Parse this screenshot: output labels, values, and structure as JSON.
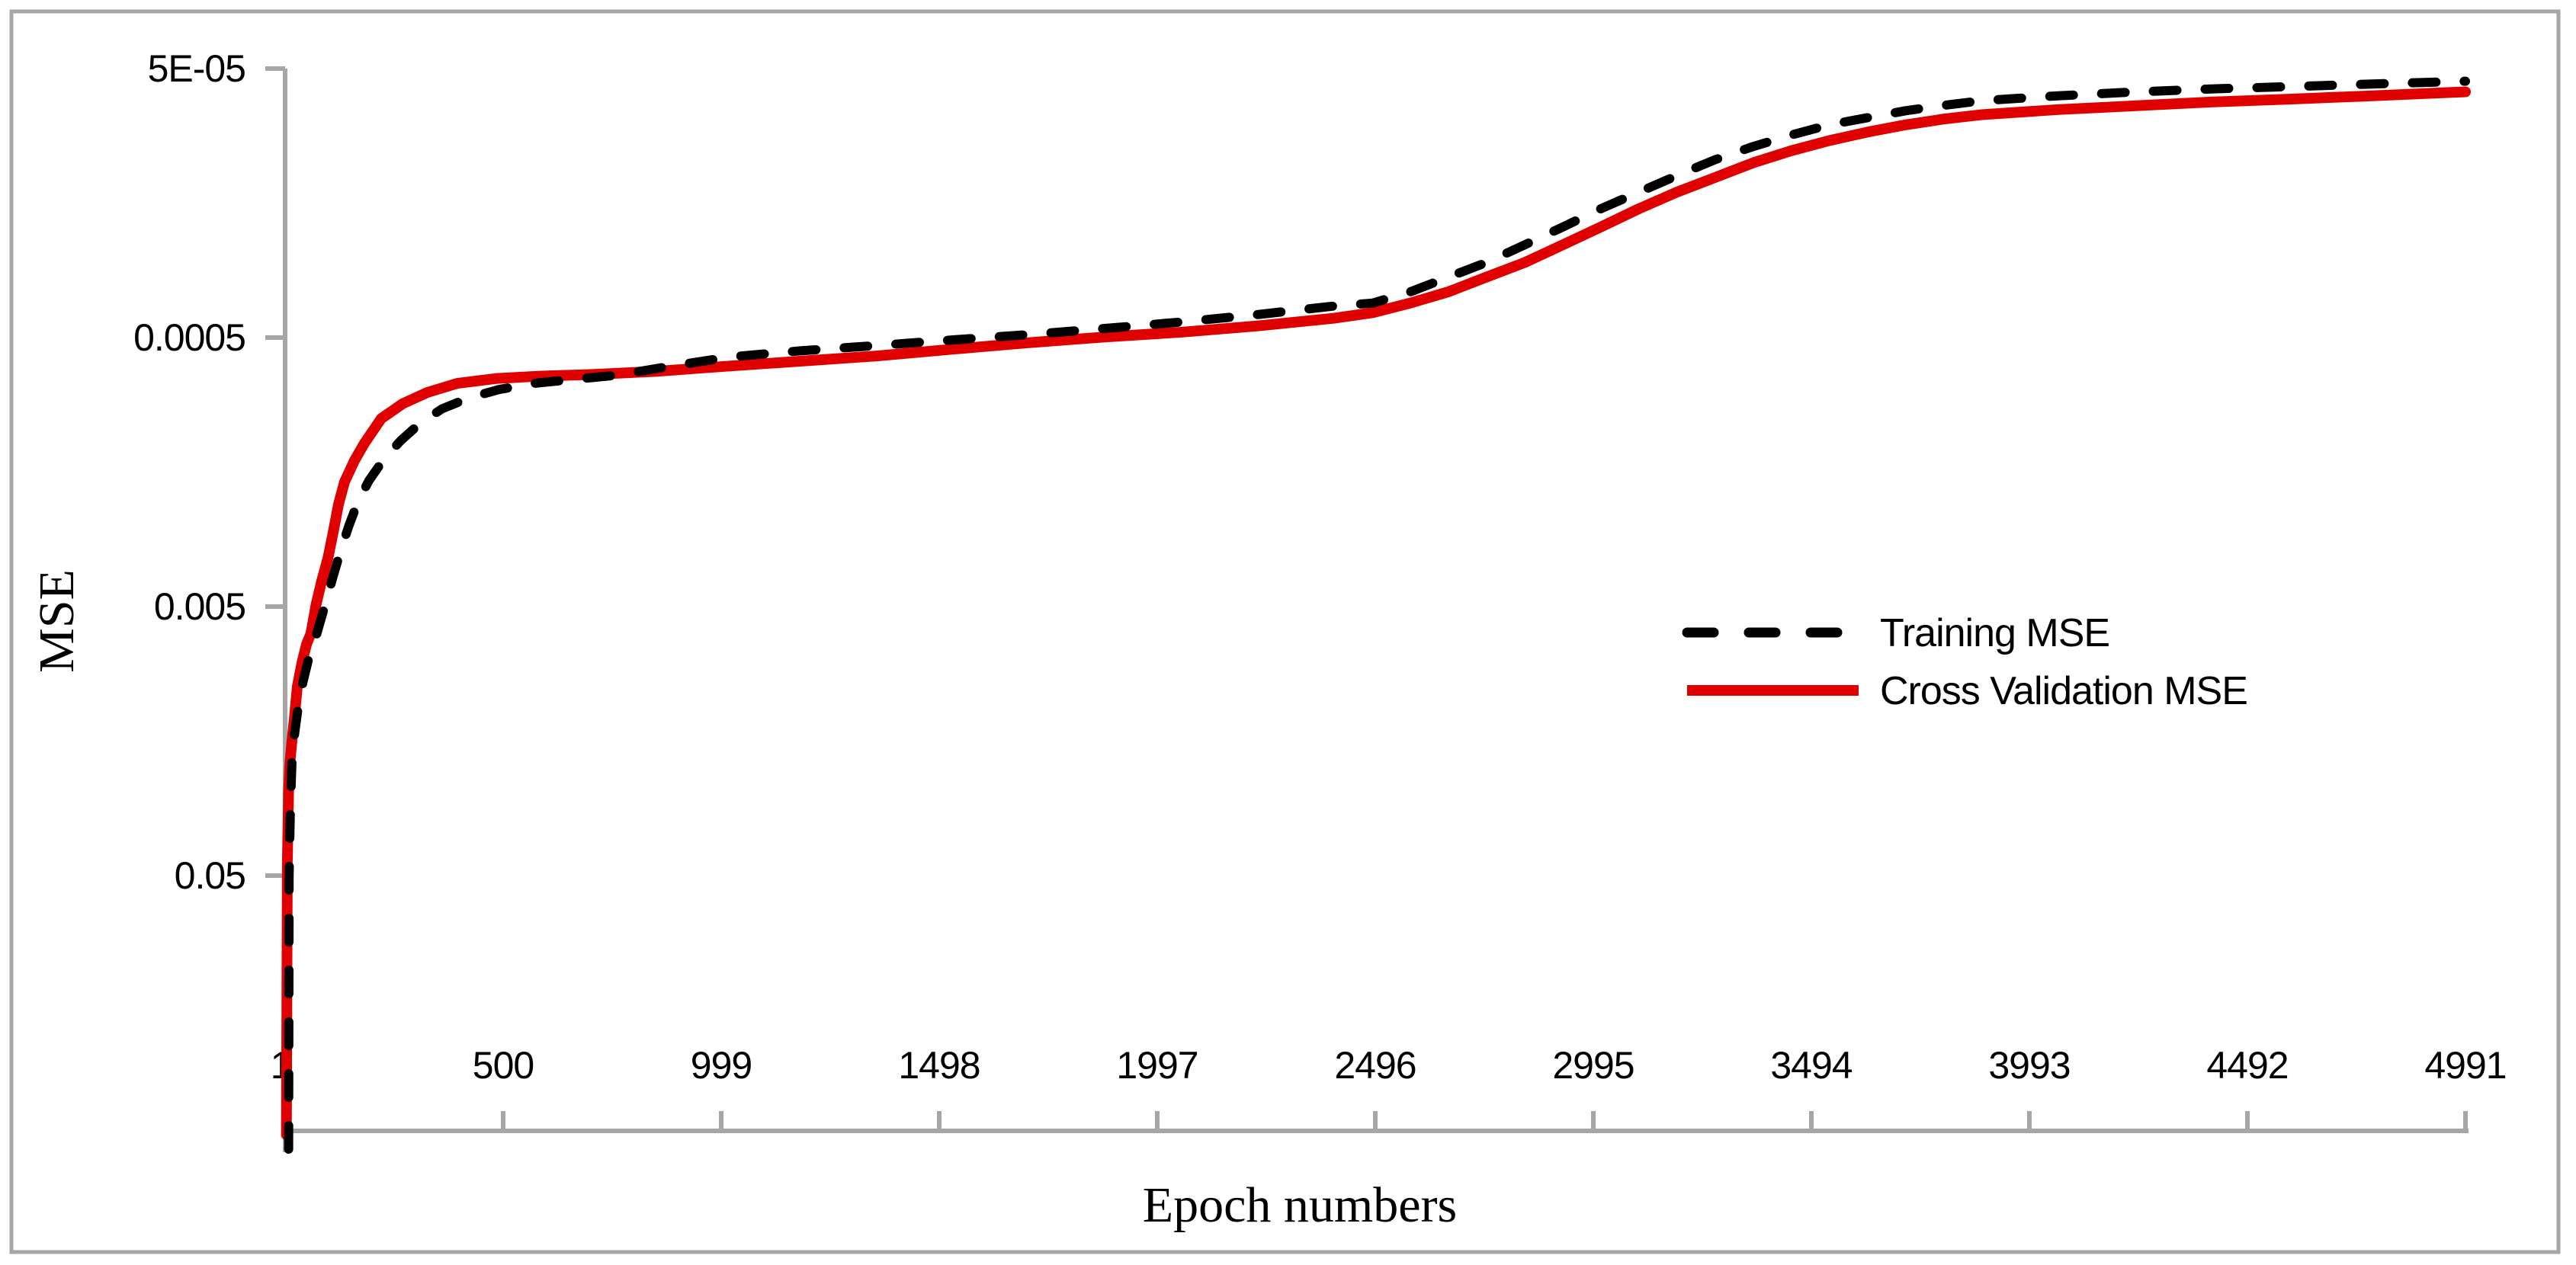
{
  "figure": {
    "kind": "excel-style-line-chart",
    "background": "#ffffff"
  },
  "colors": {
    "axis": "#a6a6a6",
    "frame": "#a6a6a6",
    "text": "#000000",
    "training": "#000000",
    "cross_validation": "#e00000"
  },
  "chart_data": {
    "type": "line",
    "title": "",
    "xlabel": "Epoch numbers",
    "ylabel": "MSE",
    "grid": false,
    "legend_position": "center-right-inside",
    "x_tick_labels": [
      "1",
      "500",
      "999",
      "1498",
      "1997",
      "2496",
      "2995",
      "3494",
      "3993",
      "4492",
      "4991"
    ],
    "x_tick_values": [
      1,
      500,
      999,
      1498,
      1997,
      2496,
      2995,
      3494,
      3993,
      4492,
      4991
    ],
    "y_tick_labels": [
      "5E-05",
      "0.0005",
      "0.005",
      "0.05"
    ],
    "y_tick_values": [
      5e-05,
      0.0005,
      0.005,
      0.05
    ],
    "x_range": [
      1,
      4991
    ],
    "y_axis": {
      "scale": "log",
      "reversed": true,
      "top_value": 5e-05,
      "bottom_value": 0.45
    },
    "series": [
      {
        "name": "Training MSE",
        "color": "#000000",
        "style": "dashed",
        "points": [
          [
            9,
            0.52
          ],
          [
            10,
            0.05
          ],
          [
            13,
            0.028
          ],
          [
            17,
            0.018
          ],
          [
            23,
            0.0147
          ],
          [
            31,
            0.0118
          ],
          [
            42,
            0.0095
          ],
          [
            55,
            0.0078
          ],
          [
            70,
            0.0066
          ],
          [
            93,
            0.0049
          ],
          [
            110,
            0.0039
          ],
          [
            128,
            0.0031
          ],
          [
            147,
            0.0025
          ],
          [
            168,
            0.00203
          ],
          [
            193,
            0.0017
          ],
          [
            225,
            0.00143
          ],
          [
            265,
            0.00121
          ],
          [
            310,
            0.00104
          ],
          [
            360,
            0.00092
          ],
          [
            420,
            0.00084
          ],
          [
            490,
            0.00078
          ],
          [
            570,
            0.00074
          ],
          [
            660,
            0.000715
          ],
          [
            760,
            0.00069
          ],
          [
            880,
            0.00064
          ],
          [
            1020,
            0.00059
          ],
          [
            1180,
            0.00056
          ],
          [
            1355,
            0.000535
          ],
          [
            1530,
            0.00051
          ],
          [
            1705,
            0.000487
          ],
          [
            1880,
            0.000462
          ],
          [
            2055,
            0.000437
          ],
          [
            2230,
            0.00041
          ],
          [
            2400,
            0.000382
          ],
          [
            2490,
            0.000372
          ],
          [
            2576,
            0.000338
          ],
          [
            2663,
            0.000298
          ],
          [
            2750,
            0.000263
          ],
          [
            2838,
            0.000226
          ],
          [
            2925,
            0.000194
          ],
          [
            3012,
            0.000166
          ],
          [
            3099,
            0.000144
          ],
          [
            3186,
            0.000125
          ],
          [
            3274,
            0.000109
          ],
          [
            3361,
            9.74e-05
          ],
          [
            3448,
            8.83e-05
          ],
          [
            3535,
            8.09e-05
          ],
          [
            3623,
            7.61e-05
          ],
          [
            3710,
            7.17e-05
          ],
          [
            3797,
            6.85e-05
          ],
          [
            3884,
            6.58e-05
          ],
          [
            4059,
            6.31e-05
          ],
          [
            4233,
            6.11e-05
          ],
          [
            4408,
            5.95e-05
          ],
          [
            4582,
            5.84e-05
          ],
          [
            4757,
            5.72e-05
          ],
          [
            4991,
            5.57e-05
          ]
        ]
      },
      {
        "name": "Cross Validation MSE",
        "color": "#e00000",
        "style": "solid",
        "points": [
          [
            4,
            0.46
          ],
          [
            6,
            0.045
          ],
          [
            9,
            0.024
          ],
          [
            12,
            0.019
          ],
          [
            17,
            0.0155
          ],
          [
            22,
            0.0131
          ],
          [
            29,
            0.0099
          ],
          [
            40,
            0.008
          ],
          [
            50,
            0.0069
          ],
          [
            60,
            0.0063
          ],
          [
            72,
            0.0049
          ],
          [
            85,
            0.004
          ],
          [
            99,
            0.0033
          ],
          [
            112,
            0.0026
          ],
          [
            123,
            0.00209
          ],
          [
            137,
            0.00172
          ],
          [
            160,
            0.00143
          ],
          [
            182,
            0.00124
          ],
          [
            221,
            0.001
          ],
          [
            270,
            0.00088
          ],
          [
            326,
            0.0008
          ],
          [
            395,
            0.00074
          ],
          [
            483,
            0.00071
          ],
          [
            587,
            0.000695
          ],
          [
            709,
            0.000685
          ],
          [
            849,
            0.000668
          ],
          [
            1006,
            0.00064
          ],
          [
            1180,
            0.000612
          ],
          [
            1355,
            0.000585
          ],
          [
            1530,
            0.000552
          ],
          [
            1705,
            0.000522
          ],
          [
            1880,
            0.000497
          ],
          [
            2055,
            0.000477
          ],
          [
            2230,
            0.000452
          ],
          [
            2400,
            0.000424
          ],
          [
            2490,
            0.000404
          ],
          [
            2576,
            0.000372
          ],
          [
            2663,
            0.000338
          ],
          [
            2750,
            0.000298
          ],
          [
            2838,
            0.000263
          ],
          [
            2925,
            0.000226
          ],
          [
            3012,
            0.000194
          ],
          [
            3099,
            0.000166
          ],
          [
            3186,
            0.000144
          ],
          [
            3274,
            0.000127
          ],
          [
            3361,
            0.000112
          ],
          [
            3448,
            0.000101
          ],
          [
            3535,
            9.26e-05
          ],
          [
            3623,
            8.61e-05
          ],
          [
            3710,
            8.09e-05
          ],
          [
            3797,
            7.7e-05
          ],
          [
            3884,
            7.42e-05
          ],
          [
            4059,
            7.1e-05
          ],
          [
            4233,
            6.88e-05
          ],
          [
            4408,
            6.66e-05
          ],
          [
            4582,
            6.5e-05
          ],
          [
            4757,
            6.33e-05
          ],
          [
            4991,
            6.1e-05
          ]
        ]
      }
    ]
  }
}
